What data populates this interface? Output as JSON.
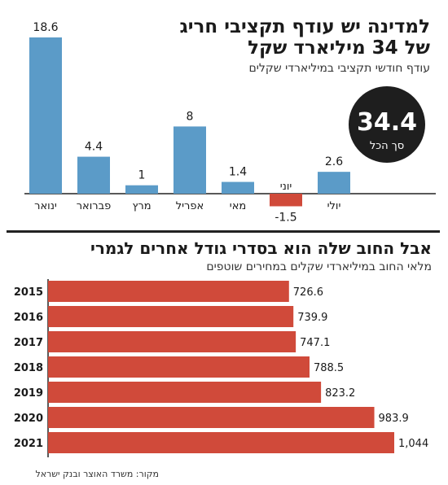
{
  "top": {
    "title_line1": "למדינה יש עודף תקציבי חריג",
    "title_line2": "של 34 מיליארד שקל",
    "subtitle": "עודף חודשי תקציבי במיליארדי שקלים",
    "badge_value": "34.4",
    "badge_label": "סך הכל"
  },
  "bottom": {
    "title": "אבל החוב שלה הוא בסדרי גודל אחרים לגמרי",
    "subtitle": "מלאי החוב במיליארדי שקלים במחירים שוטפים"
  },
  "source": "מקור: משרד האוצר ובנק ישראל",
  "colors": {
    "monthly_bar": "#5b9bc8",
    "negative_bar": "#d04a3a",
    "debt_bar": "#d04a3a",
    "badge_bg": "#1e1e1e",
    "badge_text": "#ffffff",
    "rule": "#222222"
  },
  "chart_data": [
    {
      "type": "bar",
      "title": "למדינה יש עודף תקציבי חריג של 34 מיליארד שקל",
      "subtitle": "עודף חודשי תקציבי במיליארדי שקלים",
      "categories": [
        "ינואר",
        "פברואר",
        "מרץ",
        "אפריל",
        "מאי",
        "יוני",
        "יולי"
      ],
      "values": [
        18.6,
        4.4,
        1,
        8,
        1.4,
        -1.5,
        2.6
      ],
      "value_labels": [
        "18.6",
        "4.4",
        "1",
        "8",
        "1.4",
        "-1.5",
        "2.6"
      ],
      "ylim": [
        -1.5,
        18.6
      ],
      "grid": false,
      "orientation": "vertical",
      "direction": "right-to-left"
    },
    {
      "type": "bar",
      "title": "אבל החוב שלה הוא בסדרי גודל אחרים לגמרי",
      "subtitle": "מלאי החוב במיליארדי שקלים במחירים שוטפים",
      "categories": [
        "2015",
        "2016",
        "2017",
        "2018",
        "2019",
        "2020",
        "2021"
      ],
      "values": [
        726.6,
        739.9,
        747.1,
        788.5,
        823.2,
        983.9,
        1044
      ],
      "value_labels": [
        "726.6",
        "739.9",
        "747.1",
        "788.5",
        "823.2",
        "983.9",
        "1,044"
      ],
      "xlim": [
        0,
        1044
      ],
      "grid": false,
      "orientation": "horizontal"
    }
  ]
}
